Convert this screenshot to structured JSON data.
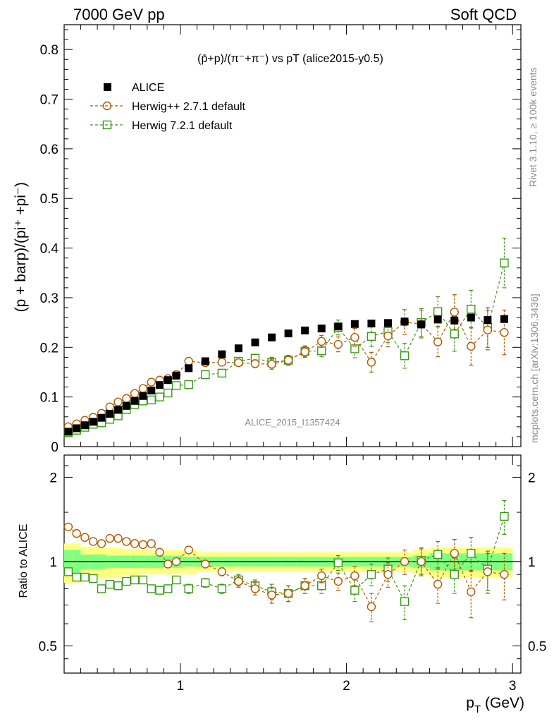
{
  "header": {
    "left": "7000 GeV pp",
    "right": "Soft QCD"
  },
  "colors": {
    "alice": "#000000",
    "herwig_pp": "#b35a00",
    "herwig7": "#3a9a14",
    "band_inner": "#80ff80",
    "band_outer": "#ffff80",
    "side_text": "#8a8a8a"
  },
  "side_labels": {
    "rivet": "Rivet 3.1.10, ≥ 100k events",
    "mcplots": "mcplots.cern.ch [arXiv:1306.3436]"
  },
  "watermark": "ALICE_2015_I1357424",
  "chart_data": [
    {
      "type": "scatter",
      "panel": "main",
      "title": "(p̄+p)/(π⁻+π⁻) vs pT (alice2015-y0.5)",
      "ylabel": "(p + barp)/(pi⁺ +pi⁻)",
      "xlim": [
        0.3,
        3.05
      ],
      "ylim": [
        0,
        0.85
      ],
      "yticks": [
        0,
        0.1,
        0.2,
        0.3,
        0.4,
        0.5,
        0.6,
        0.7,
        0.8
      ],
      "ytick_labels": [
        "0",
        "0.1",
        "0.2",
        "0.3",
        "0.4",
        "0.5",
        "0.6",
        "0.7",
        "0.8"
      ],
      "legend_position": "top-left",
      "x": [
        0.325,
        0.375,
        0.425,
        0.475,
        0.525,
        0.575,
        0.625,
        0.675,
        0.725,
        0.775,
        0.825,
        0.875,
        0.925,
        0.975,
        1.05,
        1.15,
        1.25,
        1.35,
        1.45,
        1.55,
        1.65,
        1.75,
        1.85,
        1.95,
        2.05,
        2.15,
        2.25,
        2.35,
        2.45,
        2.55,
        2.65,
        2.75,
        2.85,
        2.95
      ],
      "series": [
        {
          "name": "ALICE",
          "values": [
            0.03,
            0.037,
            0.043,
            0.05,
            0.058,
            0.066,
            0.074,
            0.082,
            0.092,
            0.102,
            0.113,
            0.124,
            0.134,
            0.143,
            0.158,
            0.172,
            0.186,
            0.198,
            0.21,
            0.22,
            0.228,
            0.234,
            0.238,
            0.242,
            0.247,
            0.248,
            0.249,
            0.252,
            0.246,
            0.256,
            0.254,
            0.26,
            0.255,
            0.257
          ]
        },
        {
          "name": "Herwig++ 2.7.1 default",
          "values": [
            0.04,
            0.046,
            0.053,
            0.059,
            0.067,
            0.08,
            0.09,
            0.097,
            0.107,
            0.117,
            0.13,
            0.134,
            0.137,
            0.145,
            0.172,
            0.169,
            0.17,
            0.169,
            0.167,
            0.166,
            0.174,
            0.191,
            0.212,
            0.206,
            0.22,
            0.17,
            0.223,
            0.251,
            0.247,
            0.211,
            0.271,
            0.202,
            0.235,
            0.23
          ],
          "errors": [
            0.003,
            0.003,
            0.003,
            0.003,
            0.003,
            0.003,
            0.003,
            0.003,
            0.003,
            0.003,
            0.003,
            0.003,
            0.003,
            0.003,
            0.005,
            0.005,
            0.006,
            0.007,
            0.008,
            0.01,
            0.01,
            0.011,
            0.012,
            0.015,
            0.018,
            0.02,
            0.022,
            0.025,
            0.028,
            0.03,
            0.035,
            0.038,
            0.04,
            0.045
          ]
        },
        {
          "name": "Herwig 7.2.1 default",
          "values": [
            0.028,
            0.033,
            0.039,
            0.045,
            0.048,
            0.055,
            0.062,
            0.075,
            0.085,
            0.092,
            0.094,
            0.1,
            0.108,
            0.123,
            0.125,
            0.145,
            0.148,
            0.172,
            0.178,
            0.17,
            0.174,
            0.192,
            0.193,
            0.24,
            0.197,
            0.222,
            0.232,
            0.183,
            0.25,
            0.272,
            0.227,
            0.277,
            0.24,
            0.37
          ],
          "errors": [
            0.003,
            0.003,
            0.003,
            0.003,
            0.003,
            0.003,
            0.003,
            0.003,
            0.003,
            0.003,
            0.003,
            0.003,
            0.003,
            0.003,
            0.005,
            0.005,
            0.006,
            0.007,
            0.008,
            0.01,
            0.01,
            0.011,
            0.012,
            0.015,
            0.018,
            0.02,
            0.022,
            0.025,
            0.028,
            0.03,
            0.035,
            0.038,
            0.04,
            0.05
          ]
        }
      ]
    },
    {
      "type": "scatter",
      "panel": "ratio",
      "ylabel": "Ratio to ALICE",
      "yscale": "log",
      "ylim": [
        0.4,
        2.4
      ],
      "yticks": [
        0.5,
        1,
        2
      ],
      "ytick_labels": [
        "0.5",
        "1",
        "2"
      ],
      "xlabel": "p_T (GeV)",
      "xticks": [
        1,
        2,
        3
      ],
      "xtick_labels": [
        "1",
        "2",
        "3"
      ],
      "x": [
        0.325,
        0.375,
        0.425,
        0.475,
        0.525,
        0.575,
        0.625,
        0.675,
        0.725,
        0.775,
        0.825,
        0.875,
        0.925,
        0.975,
        1.05,
        1.15,
        1.25,
        1.35,
        1.45,
        1.55,
        1.65,
        1.75,
        1.85,
        1.95,
        2.05,
        2.15,
        2.25,
        2.35,
        2.45,
        2.55,
        2.65,
        2.75,
        2.85,
        2.95
      ],
      "series": [
        {
          "name": "Herwig++ 2.7.1 default",
          "values": [
            1.33,
            1.26,
            1.22,
            1.18,
            1.16,
            1.21,
            1.21,
            1.18,
            1.16,
            1.15,
            1.16,
            1.08,
            0.98,
            1.0,
            1.1,
            0.98,
            0.92,
            0.85,
            0.8,
            0.76,
            0.77,
            0.82,
            0.89,
            0.85,
            0.89,
            0.69,
            0.9,
            1.0,
            1.0,
            0.83,
            1.07,
            0.78,
            0.92,
            0.9
          ],
          "errors": [
            0.02,
            0.02,
            0.02,
            0.02,
            0.02,
            0.02,
            0.02,
            0.02,
            0.02,
            0.02,
            0.02,
            0.02,
            0.02,
            0.02,
            0.03,
            0.03,
            0.03,
            0.04,
            0.04,
            0.05,
            0.05,
            0.05,
            0.05,
            0.06,
            0.07,
            0.08,
            0.09,
            0.1,
            0.11,
            0.12,
            0.13,
            0.15,
            0.15,
            0.17
          ]
        },
        {
          "name": "Herwig 7.2.1 default",
          "values": [
            0.92,
            0.88,
            0.88,
            0.87,
            0.8,
            0.83,
            0.82,
            0.85,
            0.86,
            0.86,
            0.8,
            0.79,
            0.8,
            0.86,
            0.8,
            0.84,
            0.8,
            0.86,
            0.82,
            0.78,
            0.77,
            0.82,
            0.82,
            0.99,
            0.79,
            0.9,
            0.94,
            0.72,
            1.01,
            1.06,
            0.9,
            1.07,
            0.94,
            1.45
          ],
          "errors": [
            0.02,
            0.02,
            0.02,
            0.02,
            0.02,
            0.02,
            0.02,
            0.02,
            0.02,
            0.02,
            0.02,
            0.02,
            0.02,
            0.02,
            0.03,
            0.03,
            0.03,
            0.04,
            0.04,
            0.05,
            0.05,
            0.05,
            0.05,
            0.06,
            0.07,
            0.08,
            0.09,
            0.1,
            0.11,
            0.12,
            0.13,
            0.15,
            0.15,
            0.2
          ]
        }
      ],
      "band_inner": [
        0.1,
        0.1,
        0.06,
        0.06,
        0.06,
        0.05,
        0.05,
        0.05,
        0.05,
        0.05,
        0.05,
        0.05,
        0.05,
        0.05,
        0.04,
        0.04,
        0.04,
        0.04,
        0.04,
        0.04,
        0.04,
        0.04,
        0.04,
        0.04,
        0.04,
        0.04,
        0.04,
        0.04,
        0.05,
        0.07,
        0.07,
        0.07,
        0.07,
        0.07
      ],
      "band_outer": [
        0.16,
        0.16,
        0.13,
        0.13,
        0.13,
        0.12,
        0.12,
        0.11,
        0.11,
        0.1,
        0.1,
        0.1,
        0.1,
        0.1,
        0.1,
        0.08,
        0.08,
        0.08,
        0.08,
        0.08,
        0.08,
        0.08,
        0.08,
        0.08,
        0.08,
        0.08,
        0.08,
        0.08,
        0.1,
        0.12,
        0.12,
        0.12,
        0.12,
        0.12
      ]
    }
  ]
}
